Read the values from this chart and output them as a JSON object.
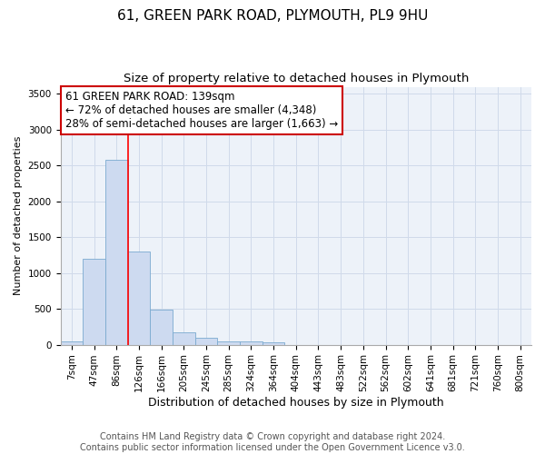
{
  "title": "61, GREEN PARK ROAD, PLYMOUTH, PL9 9HU",
  "subtitle": "Size of property relative to detached houses in Plymouth",
  "xlabel": "Distribution of detached houses by size in Plymouth",
  "ylabel": "Number of detached properties",
  "footer_line1": "Contains HM Land Registry data © Crown copyright and database right 2024.",
  "footer_line2": "Contains public sector information licensed under the Open Government Licence v3.0.",
  "categories": [
    "7sqm",
    "47sqm",
    "86sqm",
    "126sqm",
    "166sqm",
    "205sqm",
    "245sqm",
    "285sqm",
    "324sqm",
    "364sqm",
    "404sqm",
    "443sqm",
    "483sqm",
    "522sqm",
    "562sqm",
    "602sqm",
    "641sqm",
    "681sqm",
    "721sqm",
    "760sqm",
    "800sqm"
  ],
  "values": [
    50,
    1200,
    2580,
    1300,
    490,
    175,
    100,
    50,
    50,
    30,
    0,
    0,
    0,
    0,
    0,
    0,
    0,
    0,
    0,
    0,
    0
  ],
  "bar_color": "#cddaf0",
  "bar_edge_color": "#7aaad0",
  "bar_linewidth": 0.6,
  "grid_color": "#d0daea",
  "bg_color": "#edf2f9",
  "ylim": [
    0,
    3600
  ],
  "yticks": [
    0,
    500,
    1000,
    1500,
    2000,
    2500,
    3000,
    3500
  ],
  "red_line_x": 3,
  "annotation_text_line1": "61 GREEN PARK ROAD: 139sqm",
  "annotation_text_line2": "← 72% of detached houses are smaller (4,348)",
  "annotation_text_line3": "28% of semi-detached houses are larger (1,663) →",
  "annotation_box_color": "#ffffff",
  "annotation_border_color": "#cc0000",
  "title_fontsize": 11,
  "title_fontweight": "normal",
  "subtitle_fontsize": 9.5,
  "annotation_fontsize": 8.5,
  "footer_fontsize": 7,
  "ylabel_fontsize": 8,
  "xlabel_fontsize": 9,
  "tick_fontsize": 7.5
}
